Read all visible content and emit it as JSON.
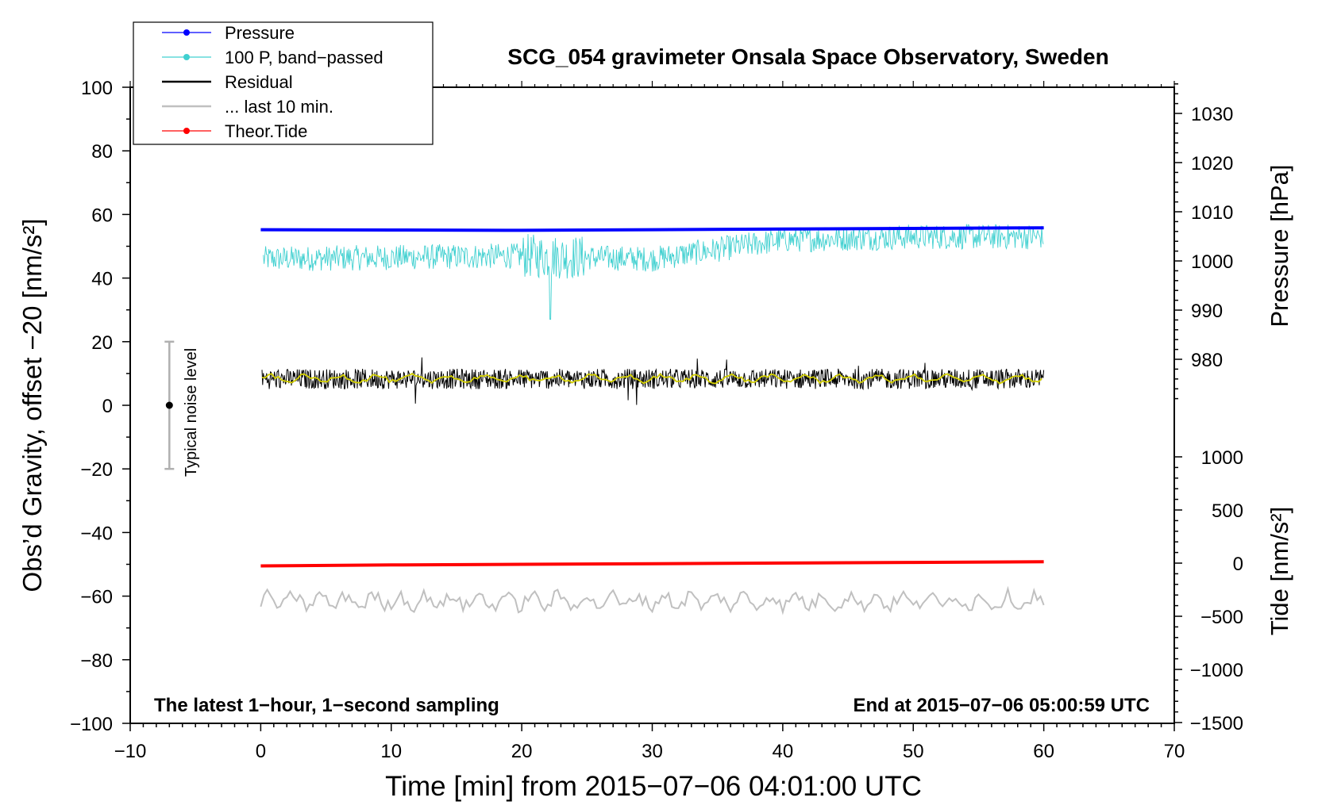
{
  "chart_data": {
    "type": "line",
    "title": "SCG_054 gravimeter Onsala Space Observatory, Sweden",
    "xlabel": "Time [min] from 2015−07−06 04:01:00 UTC",
    "ylabel_left": "Obs’d Gravity, offset −20 [nm/s²]",
    "ylabel_right_pressure": "Pressure [hPa]",
    "ylabel_right_tide": "Tide [nm/s²]",
    "xlim": [
      -10,
      70
    ],
    "ylim": [
      -100,
      100
    ],
    "x_ticks": [
      "−10",
      "0",
      "10",
      "20",
      "30",
      "40",
      "50",
      "60",
      "70"
    ],
    "y_ticks": [
      "−100",
      "−80",
      "−60",
      "−40",
      "−20",
      "0",
      "20",
      "40",
      "60",
      "80",
      "100"
    ],
    "pressure_ticks": [
      "1030",
      "1020",
      "1010",
      "1000",
      "990",
      "980"
    ],
    "tide_ticks": [
      "1000",
      "500",
      "0",
      "−500",
      "−1000",
      "−1500"
    ],
    "grid": false,
    "legend_position": "top-left",
    "annotation_left": "The latest 1−hour, 1−second sampling",
    "annotation_right": "End at 2015−07−06 05:00:59 UTC",
    "noise_label": "Typical noise level",
    "noise_bar": {
      "x": -7,
      "center": 0,
      "low": -20,
      "high": 20
    },
    "series": [
      {
        "name": "Pressure",
        "color": "#0000ff",
        "x": [
          0,
          10,
          20,
          30,
          40,
          50,
          60
        ],
        "values": [
          55.2,
          55.1,
          55.0,
          55.2,
          55.4,
          55.6,
          55.8
        ]
      },
      {
        "name": "100 P, band−passed",
        "color": "#40d0d0",
        "x": [
          0,
          10,
          20,
          22,
          30,
          40,
          50,
          60
        ],
        "values": [
          46,
          46,
          47,
          30,
          46,
          52,
          53,
          53
        ]
      },
      {
        "name": "Residual",
        "color": "#000000",
        "x": [
          0,
          10,
          20,
          30,
          40,
          50,
          60
        ],
        "values": [
          8,
          8,
          8.5,
          8.5,
          8,
          8,
          8
        ]
      },
      {
        "name": "... last 10 min.",
        "color": "#c0c0c0",
        "x": [
          0,
          10,
          20,
          30,
          40,
          50,
          60
        ],
        "values": [
          -61,
          -61,
          -61,
          -61,
          -61,
          -61,
          -61
        ]
      },
      {
        "name": "Theor.Tide",
        "color": "#ff0000",
        "x": [
          0,
          10,
          20,
          30,
          40,
          50,
          60
        ],
        "values": [
          -50.5,
          -50.2,
          -50.0,
          -49.8,
          -49.6,
          -49.4,
          -49.2
        ]
      }
    ],
    "smoothed_residual_color": "#d4d000"
  }
}
